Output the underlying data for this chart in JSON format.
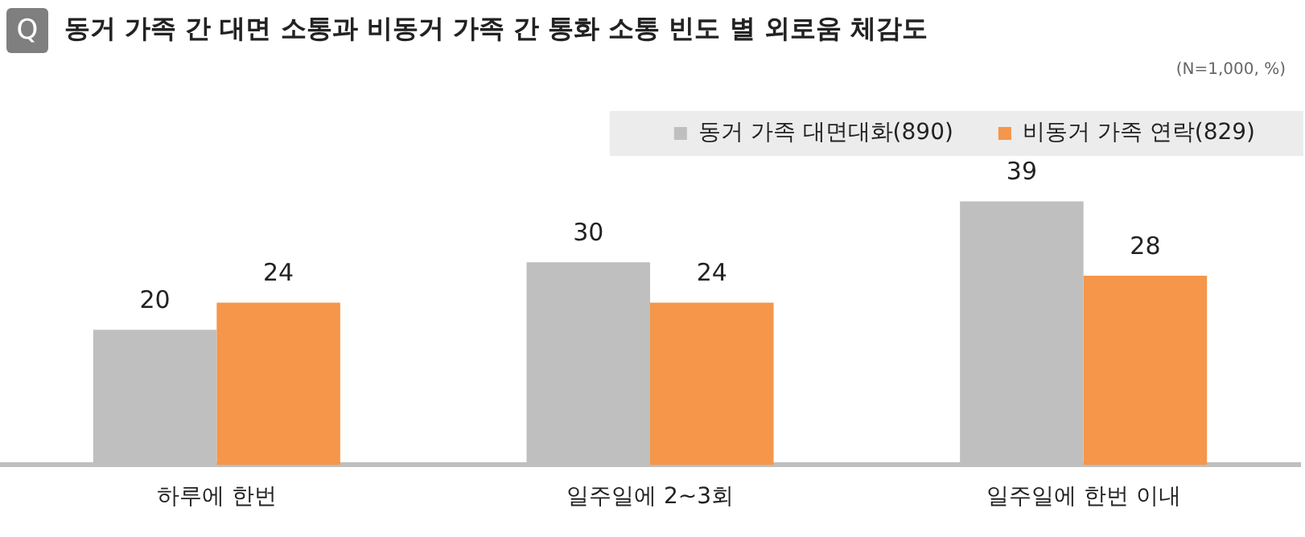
{
  "chart_data": {
    "type": "bar",
    "title": "동거 가족 간 대면 소통과 비동거 가족 간 통화 소통 빈도 별 외로움 체감도",
    "annotations": [
      "Q",
      "(N=1,000, %)"
    ],
    "categories": [
      "하루에 한번",
      "일주일에 2~3회",
      "일주일에 한번 이내"
    ],
    "series": [
      {
        "name": "동거 가족 대면대화(890)",
        "color": "#bfbfbf",
        "values": [
          20,
          30,
          39
        ]
      },
      {
        "name": "비동거 가족 연락(829)",
        "color": "#f5964a",
        "values": [
          24,
          24,
          28
        ]
      }
    ],
    "data_labels": true,
    "legend": "top right"
  }
}
